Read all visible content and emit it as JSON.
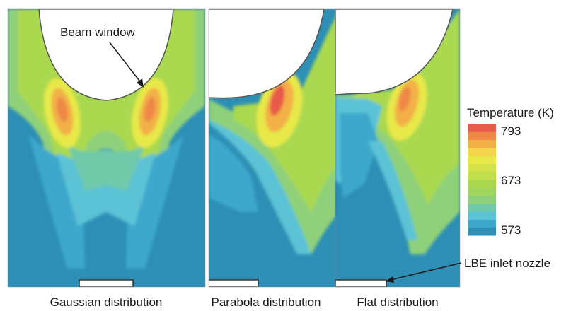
{
  "annotations": {
    "beam_window": "Beam window",
    "lbe_inlet_nozzle": "LBE inlet nozzle"
  },
  "panels": [
    {
      "caption": "Gaussian distribution"
    },
    {
      "caption": "Parabola distribution"
    },
    {
      "caption": "Flat distribution"
    }
  ],
  "legend": {
    "title": "Temperature (K)",
    "ticks": [
      "793",
      "673",
      "573"
    ],
    "min": 573,
    "max": 793,
    "colors": [
      "#2d8fb5",
      "#3ea7cc",
      "#5bc3d6",
      "#6fc9a8",
      "#8fd07a",
      "#9fd65e",
      "#aad94f",
      "#bfe04c",
      "#d4e34a",
      "#e8e84a",
      "#f3d44a",
      "#f2b046",
      "#ef8746",
      "#e85a4a"
    ]
  }
}
